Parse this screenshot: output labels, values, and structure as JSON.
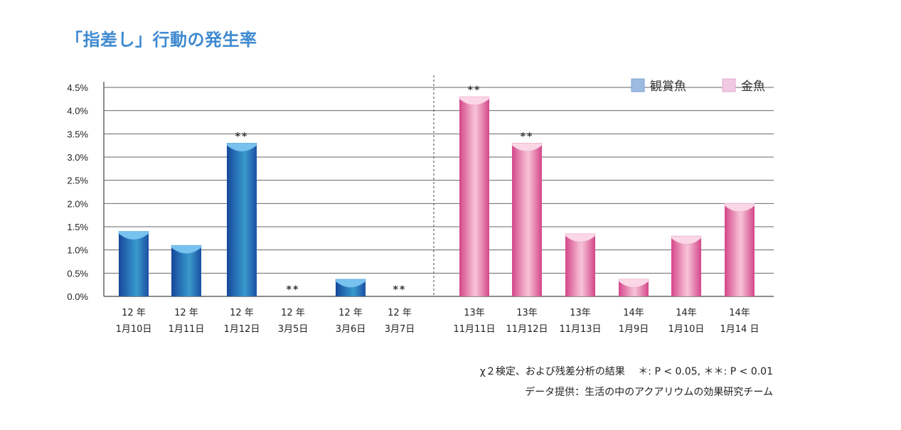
{
  "title": "「指差し」行動の発生率",
  "chart_data": {
    "type": "bar",
    "y_ticks": [
      "0.0%",
      "0.5%",
      "1.0%",
      "1.5%",
      "2.0%",
      "2.5%",
      "3.0%",
      "3.5%",
      "4.0%",
      "4.5%"
    ],
    "ylim": [
      0,
      4.5
    ],
    "legend": [
      {
        "name": "観賞魚",
        "color": "#9dbbe0"
      },
      {
        "name": "金魚",
        "color": "#f1c9e2"
      }
    ],
    "bars": [
      {
        "label1": "12 年",
        "label2": "1月10日",
        "value": 1.4,
        "group": 0,
        "mark": ""
      },
      {
        "label1": "12 年",
        "label2": "1月11日",
        "value": 1.1,
        "group": 0,
        "mark": ""
      },
      {
        "label1": "12 年",
        "label2": "1月12日",
        "value": 3.3,
        "group": 0,
        "mark": "**"
      },
      {
        "label1": "12 年",
        "label2": "3月5日",
        "value": 0.0,
        "group": 0,
        "mark": "**"
      },
      {
        "label1": "12 年",
        "label2": "3月6日",
        "value": 0.37,
        "group": 0,
        "mark": ""
      },
      {
        "label1": "12 年",
        "label2": "3月7日",
        "value": 0.0,
        "group": 0,
        "mark": "**"
      },
      {
        "label1": "13年",
        "label2": "11月11日",
        "value": 4.3,
        "group": 1,
        "mark": "**"
      },
      {
        "label1": "13年",
        "label2": "11月12日",
        "value": 3.3,
        "group": 1,
        "mark": "**"
      },
      {
        "label1": "13年",
        "label2": "11月13日",
        "value": 1.35,
        "group": 1,
        "mark": ""
      },
      {
        "label1": "14年",
        "label2": "1月9日",
        "value": 0.37,
        "group": 1,
        "mark": ""
      },
      {
        "label1": "14年",
        "label2": "1月10日",
        "value": 1.3,
        "group": 1,
        "mark": ""
      },
      {
        "label1": "14年",
        "label2": "1月14 日",
        "value": 2.0,
        "group": 1,
        "mark": ""
      }
    ],
    "colors": {
      "blue_dark": "#1c56a8",
      "blue_mid": "#3a93c6",
      "blue_top": "#78c2ef",
      "pink_dark": "#d6508e",
      "pink_mid": "#f4b6cf",
      "pink_top": "#fbd7e6",
      "grid": "#666666"
    }
  },
  "notes": {
    "line1": "χ２検定、および残差分析の結果　 ＊: P < 0.05, ＊＊: P < 0.01",
    "line2": "データ提供：生活の中のアクアリウムの効果研究チーム"
  }
}
